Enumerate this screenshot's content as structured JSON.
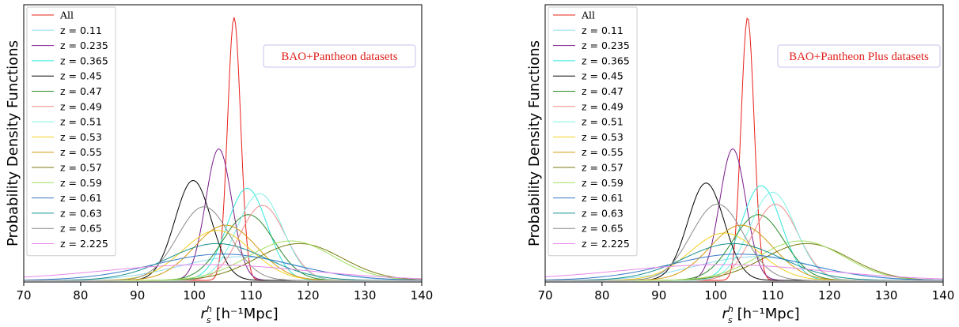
{
  "chart_data": [
    {
      "type": "line",
      "ylabel": "Probability Density Functions",
      "xlabel_main": "r",
      "xlabel_sup": "h",
      "xlabel_sub": "s",
      "xlabel_units": "[h⁻¹Mpc]",
      "xlim": [
        70,
        140
      ],
      "xticks": [
        "70",
        "80",
        "90",
        "100",
        "110",
        "120",
        "130",
        "140"
      ],
      "annotation": "BAO+Pantheon datasets",
      "legend_position": "upper-left",
      "grid": false,
      "series": [
        {
          "name": "All",
          "color": "#e8201a",
          "mu": 107.0,
          "sigma": 1.15,
          "peak": 1.0
        },
        {
          "name": "z = 0.11",
          "color": "#8fdcf0",
          "mu": 108.0,
          "sigma": 10.5,
          "peak": 0.09
        },
        {
          "name": "z = 0.235",
          "color": "#7a1a8a",
          "mu": 104.3,
          "sigma": 2.3,
          "peak": 0.5
        },
        {
          "name": "z = 0.365",
          "color": "#2ee6dc",
          "mu": 109.3,
          "sigma": 3.5,
          "peak": 0.35
        },
        {
          "name": "z = 0.45",
          "color": "#000000",
          "mu": 99.8,
          "sigma": 3.2,
          "peak": 0.38
        },
        {
          "name": "z = 0.47",
          "color": "#2a8a2a",
          "mu": 109.5,
          "sigma": 4.5,
          "peak": 0.25
        },
        {
          "name": "z = 0.49",
          "color": "#f08c8c",
          "mu": 112.0,
          "sigma": 4.0,
          "peak": 0.285
        },
        {
          "name": "z = 0.51",
          "color": "#7ff0e6",
          "mu": 111.5,
          "sigma": 4.0,
          "peak": 0.33
        },
        {
          "name": "z = 0.53",
          "color": "#f2d020",
          "mu": 104.0,
          "sigma": 6.0,
          "peak": 0.19
        },
        {
          "name": "z = 0.55",
          "color": "#d49a10",
          "mu": 105.5,
          "sigma": 5.5,
          "peak": 0.21
        },
        {
          "name": "z = 0.57",
          "color": "#7a7a10",
          "mu": 118.5,
          "sigma": 7.5,
          "peak": 0.14
        },
        {
          "name": "z = 0.59",
          "color": "#a0e060",
          "mu": 117.0,
          "sigma": 7.5,
          "peak": 0.15
        },
        {
          "name": "z = 0.61",
          "color": "#3a78c8",
          "mu": 105.0,
          "sigma": 12.0,
          "peak": 0.1
        },
        {
          "name": "z = 0.63",
          "color": "#179090",
          "mu": 104.0,
          "sigma": 8.5,
          "peak": 0.14
        },
        {
          "name": "z = 0.65",
          "color": "#8a8a8a",
          "mu": 101.7,
          "sigma": 4.6,
          "peak": 0.28
        },
        {
          "name": "z = 2.225",
          "color": "#e888e8",
          "mu": 102.0,
          "sigma": 18.0,
          "peak": 0.06
        }
      ]
    },
    {
      "type": "line",
      "ylabel": "Probability Density Functions",
      "xlabel_main": "r",
      "xlabel_sup": "h",
      "xlabel_sub": "s",
      "xlabel_units": "[h⁻¹Mpc]",
      "xlim": [
        70,
        140
      ],
      "xticks": [
        "70",
        "80",
        "90",
        "100",
        "110",
        "120",
        "130",
        "140"
      ],
      "annotation": "BAO+Pantheon Plus datasets",
      "legend_position": "upper-left",
      "grid": false,
      "series": [
        {
          "name": "All",
          "color": "#e8201a",
          "mu": 105.6,
          "sigma": 1.15,
          "peak": 1.0
        },
        {
          "name": "z = 0.11",
          "color": "#8fdcf0",
          "mu": 107.0,
          "sigma": 10.5,
          "peak": 0.09
        },
        {
          "name": "z = 0.235",
          "color": "#7a1a8a",
          "mu": 103.0,
          "sigma": 2.3,
          "peak": 0.5
        },
        {
          "name": "z = 0.365",
          "color": "#2ee6dc",
          "mu": 108.0,
          "sigma": 3.5,
          "peak": 0.36
        },
        {
          "name": "z = 0.45",
          "color": "#000000",
          "mu": 98.3,
          "sigma": 3.2,
          "peak": 0.37
        },
        {
          "name": "z = 0.47",
          "color": "#2a8a2a",
          "mu": 107.5,
          "sigma": 4.5,
          "peak": 0.25
        },
        {
          "name": "z = 0.49",
          "color": "#f08c8c",
          "mu": 110.5,
          "sigma": 4.0,
          "peak": 0.29
        },
        {
          "name": "z = 0.51",
          "color": "#7ff0e6",
          "mu": 110.0,
          "sigma": 4.0,
          "peak": 0.335
        },
        {
          "name": "z = 0.53",
          "color": "#f2d020",
          "mu": 101.5,
          "sigma": 6.0,
          "peak": 0.18
        },
        {
          "name": "z = 0.55",
          "color": "#d49a10",
          "mu": 104.5,
          "sigma": 5.5,
          "peak": 0.21
        },
        {
          "name": "z = 0.57",
          "color": "#7a7a10",
          "mu": 116.0,
          "sigma": 7.5,
          "peak": 0.14
        },
        {
          "name": "z = 0.59",
          "color": "#a0e060",
          "mu": 115.0,
          "sigma": 7.5,
          "peak": 0.15
        },
        {
          "name": "z = 0.61",
          "color": "#3a78c8",
          "mu": 104.0,
          "sigma": 12.0,
          "peak": 0.1
        },
        {
          "name": "z = 0.63",
          "color": "#179090",
          "mu": 103.0,
          "sigma": 8.5,
          "peak": 0.14
        },
        {
          "name": "z = 0.65",
          "color": "#8a8a8a",
          "mu": 100.3,
          "sigma": 4.6,
          "peak": 0.29
        },
        {
          "name": "z = 2.225",
          "color": "#e888e8",
          "mu": 101.0,
          "sigma": 18.0,
          "peak": 0.06
        }
      ]
    }
  ]
}
